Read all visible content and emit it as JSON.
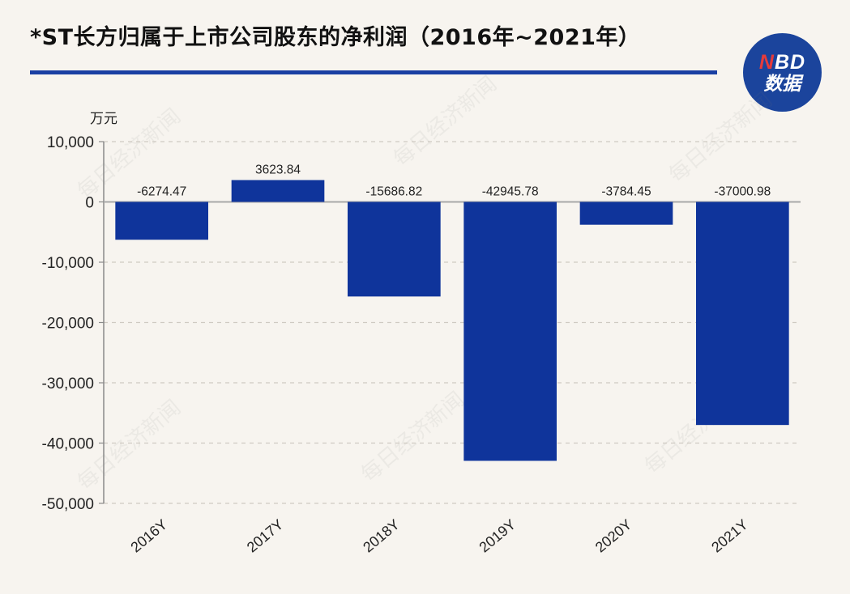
{
  "title": "*ST长方归属于上市公司股东的净利润（2016年~2021年）",
  "logo": {
    "line1_n": "N",
    "line1_rest": "BD",
    "line2": "数据"
  },
  "watermark": "每日经济新闻",
  "colors": {
    "bar": "#0f349b",
    "title_rule": "#1a3fa3",
    "background": "#f7f4ef",
    "logo": "#1b449c"
  },
  "chart_data": {
    "type": "bar",
    "ylabel": "万元",
    "categories": [
      "2016Y",
      "2017Y",
      "2018Y",
      "2019Y",
      "2020Y",
      "2021Y"
    ],
    "values": [
      -6274.47,
      3623.84,
      -15686.82,
      -42945.78,
      -3784.45,
      -37000.98
    ],
    "value_labels": [
      "-6274.47",
      "3623.84",
      "-15686.82",
      "-42945.78",
      "-3784.45",
      "-37000.98"
    ],
    "ylim": [
      -50000,
      10000
    ],
    "yticks": [
      10000,
      0,
      -10000,
      -20000,
      -30000,
      -40000,
      -50000
    ],
    "ytick_labels": [
      "10,000",
      "0",
      "-10,000",
      "-20,000",
      "-30,000",
      "-40,000",
      "-50,000"
    ],
    "grid": true
  }
}
